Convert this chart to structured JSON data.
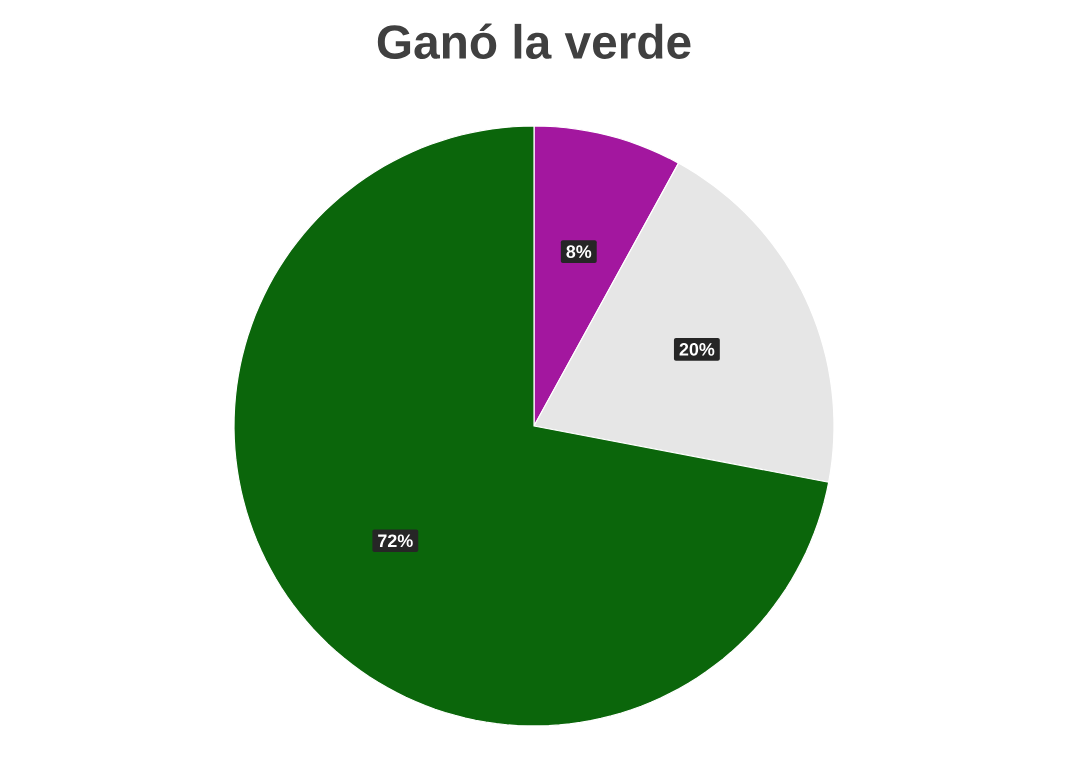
{
  "chart_data": {
    "type": "pie",
    "title": "Ganó la verde",
    "categories": [
      null,
      null,
      null
    ],
    "values": [
      8,
      20,
      72
    ],
    "colors": [
      "#a3179f",
      "#e6e6e6",
      "#0b660b"
    ],
    "value_labels": [
      "8%",
      "20%",
      "72%"
    ]
  }
}
